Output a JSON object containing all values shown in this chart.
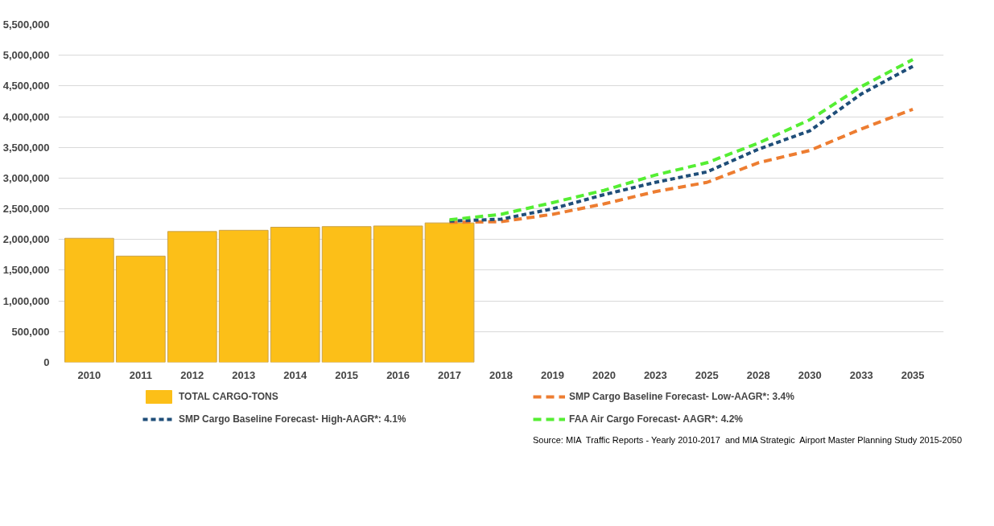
{
  "chart_data": {
    "type": "bar",
    "categories": [
      "2010",
      "2011",
      "2012",
      "2013",
      "2014",
      "2015",
      "2016",
      "2017",
      "2018",
      "2019",
      "2020",
      "2023",
      "2025",
      "2028",
      "2030",
      "2033",
      "2035"
    ],
    "series": [
      {
        "name": "TOTAL CARGO-TONS",
        "color": "#fcbf18",
        "values": [
          2020000,
          1730000,
          2130000,
          2150000,
          2200000,
          2210000,
          2220000,
          2270000,
          null,
          null,
          null,
          null,
          null,
          null,
          null,
          null,
          null
        ]
      },
      {
        "name": "SMP Cargo Baseline Forecast- Low-AAGR*: 3.4%",
        "type": "line",
        "color": "#ed7d31",
        "line_style": "dashed",
        "values": [
          null,
          null,
          null,
          null,
          null,
          null,
          null,
          2280000,
          2290000,
          2410000,
          2580000,
          2780000,
          2930000,
          3250000,
          3450000,
          3800000,
          4120000
        ]
      },
      {
        "name": "SMP Cargo Baseline Forecast- High-AAGR*: 4.1%",
        "type": "line",
        "color": "#1f4e79",
        "line_style": "dotted",
        "values": [
          null,
          null,
          null,
          null,
          null,
          null,
          null,
          2300000,
          2330000,
          2500000,
          2730000,
          2930000,
          3100000,
          3470000,
          3770000,
          4370000,
          4820000
        ]
      },
      {
        "name": "FAA Air Cargo Forecast- AAGR*: 4.2%",
        "type": "line",
        "color": "#55ee33",
        "line_style": "dashed",
        "values": [
          null,
          null,
          null,
          null,
          null,
          null,
          null,
          2320000,
          2410000,
          2600000,
          2800000,
          3050000,
          3250000,
          3570000,
          3950000,
          4490000,
          4930000
        ]
      }
    ],
    "ylim": [
      0,
      5500000
    ],
    "yticks": [
      0,
      {
        "value": 500000,
        "label": "500,000"
      },
      {
        "value": 1000000,
        "label": "1,000,000"
      },
      {
        "value": 1500000,
        "label": "1,500,000"
      },
      {
        "value": 2000000,
        "label": "2,000,000"
      },
      {
        "value": 2500000,
        "label": "2,500,000"
      },
      {
        "value": 3000000,
        "label": "3,000,000"
      },
      {
        "value": 3500000,
        "label": "3,500,000"
      },
      {
        "value": 4000000,
        "label": "4,000,000"
      },
      {
        "value": 4500000,
        "label": "4,500,000"
      },
      {
        "value": 5000000,
        "label": "5,000,000"
      },
      {
        "value": 5500000,
        "label": "5,500,000"
      }
    ],
    "grid": "y",
    "legend": "bottom",
    "annotations": [
      "Source: MIA  Traffic Reports - Yearly 2010-2017  and MIA Strategic  Airport Master Planning Study 2015-2050"
    ]
  }
}
